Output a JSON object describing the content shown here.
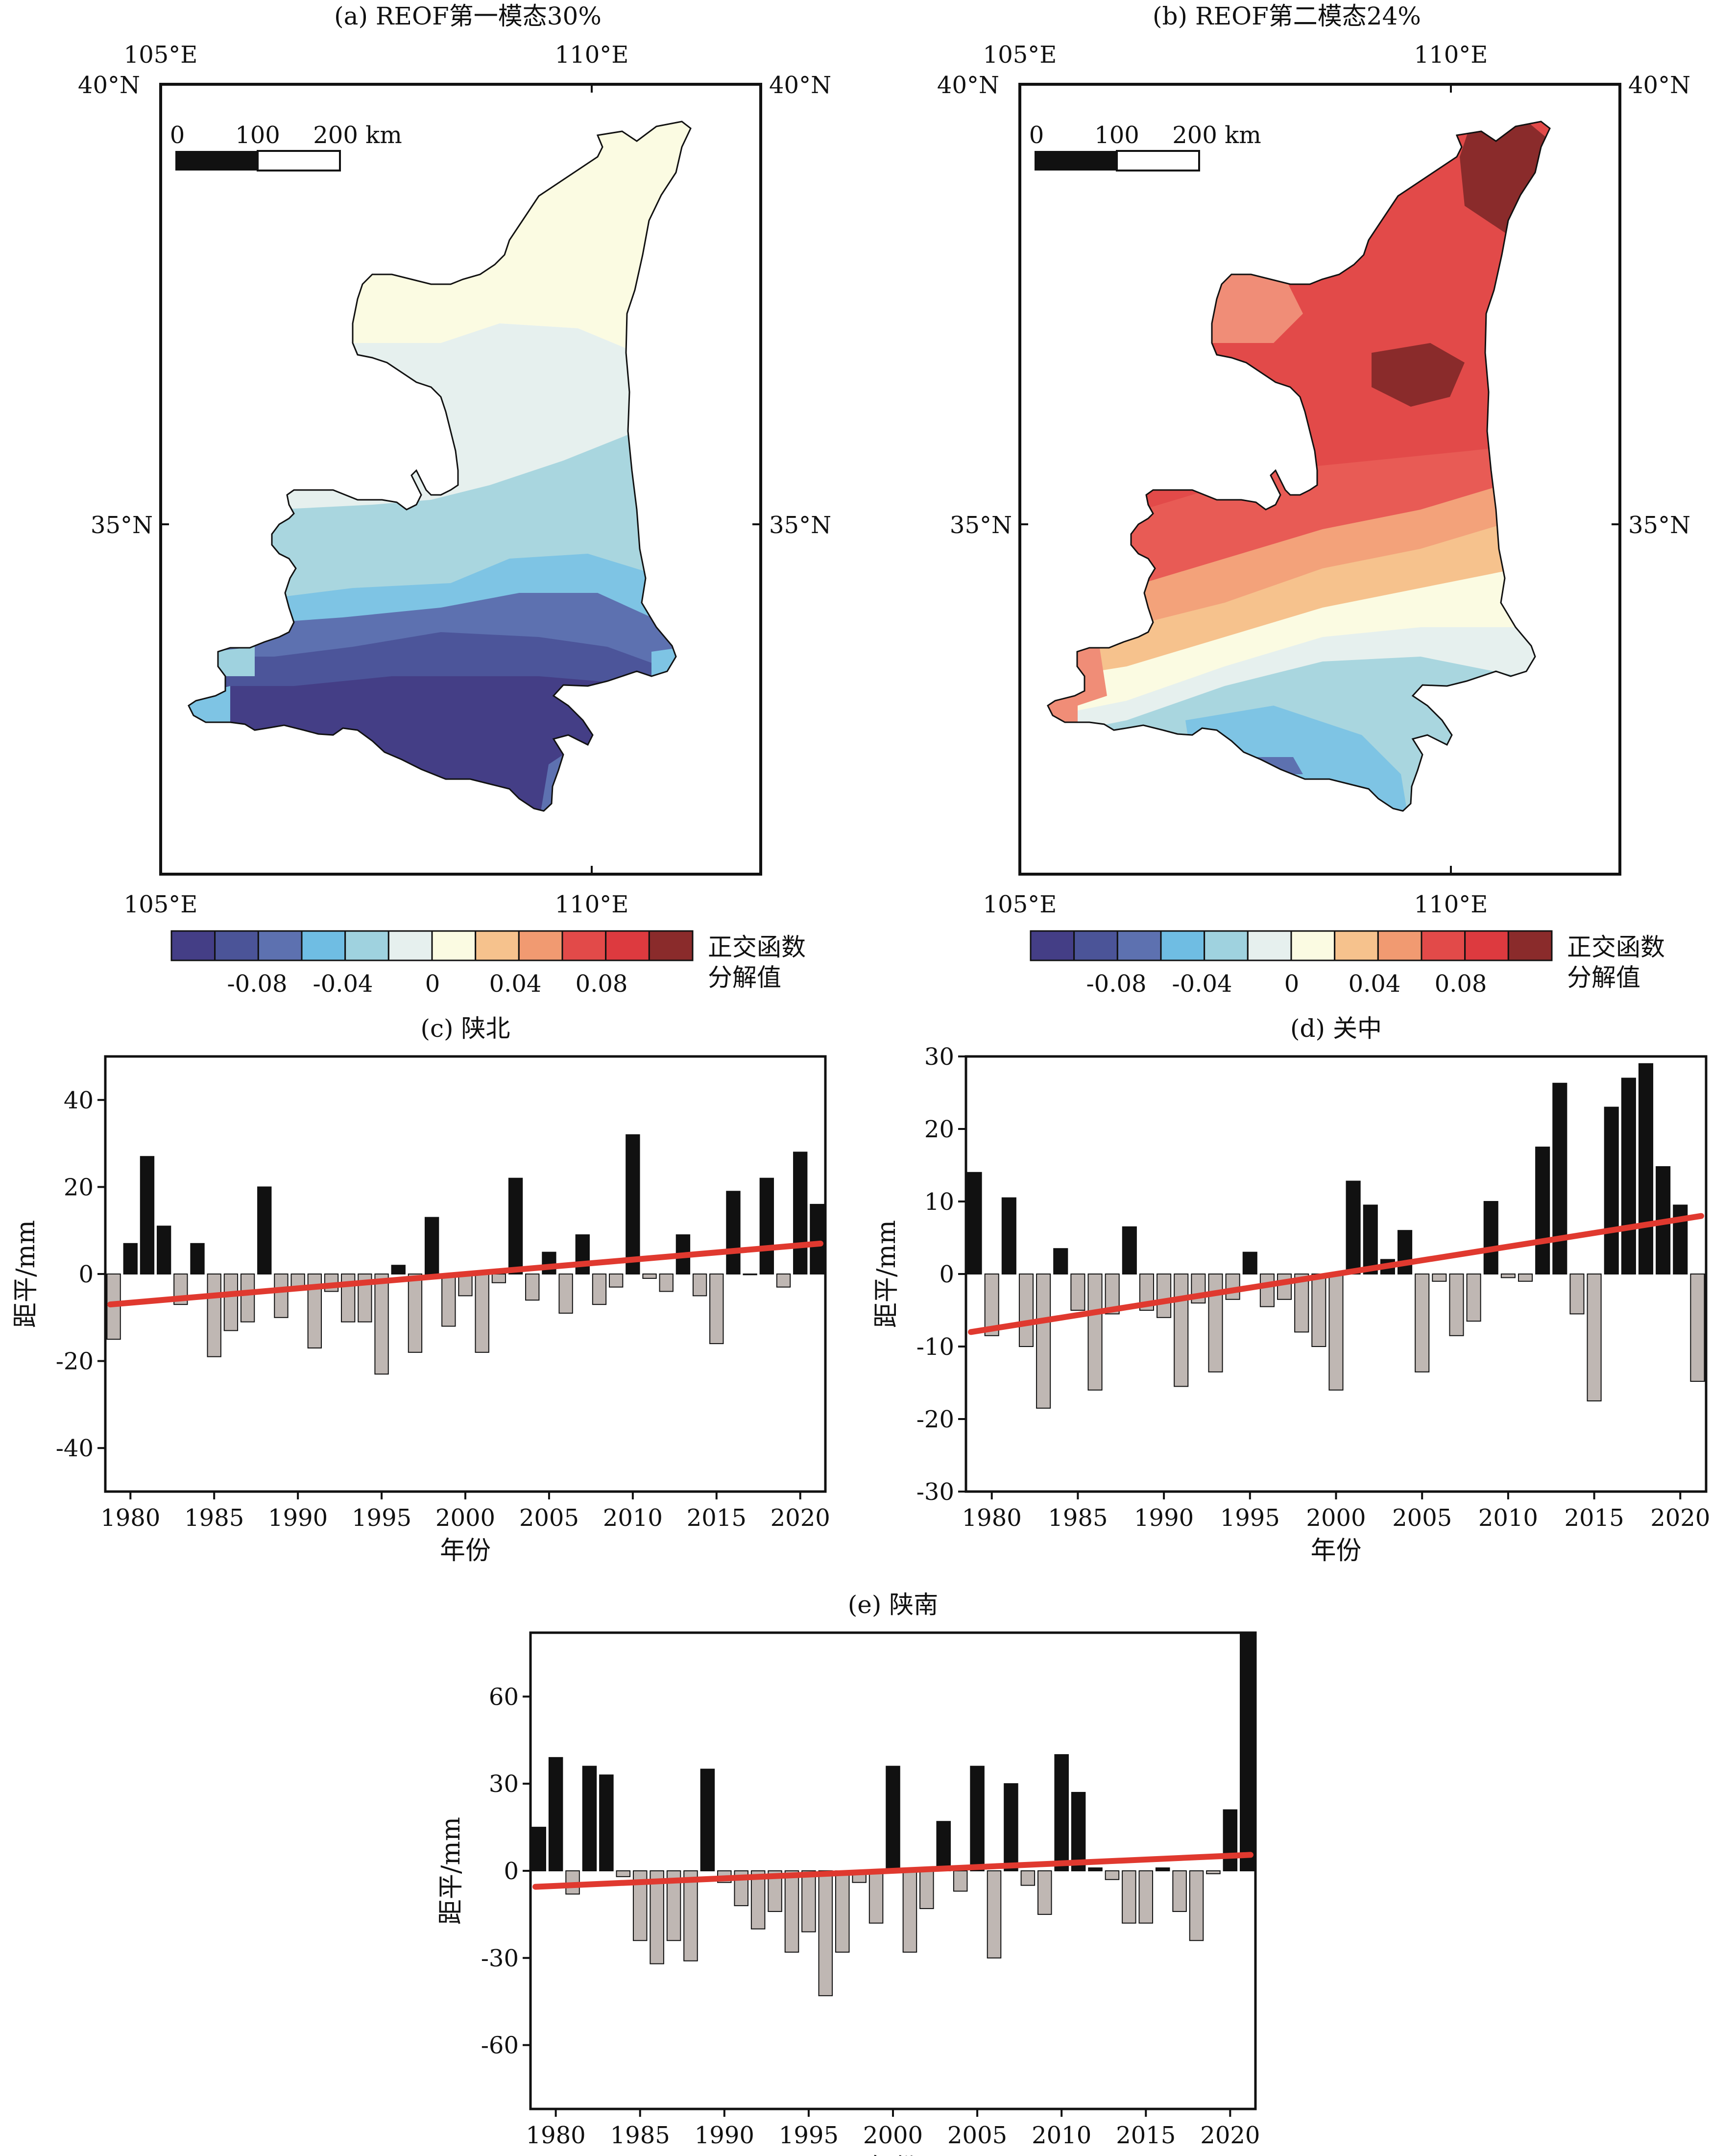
{
  "colors": {
    "neg_bar": "#bfb7b3",
    "pos_bar": "#111111",
    "trend": "#e0392f",
    "map_bg": "#ffffff",
    "colorbar": [
      "#443e86",
      "#4b5498",
      "#5d71b0",
      "#6fbde3",
      "#9fd2df",
      "#e6f0ee",
      "#fbfbe2",
      "#f6c28d",
      "#f19a71",
      "#e24a49",
      "#dd3a3f",
      "#8a2b2b"
    ]
  },
  "maps": [
    {
      "id": "a",
      "title": "(a) REOF第一模态30%",
      "lon_ticks": [
        "105°E",
        "110°E"
      ],
      "lat_ticks": [
        "40°N",
        "35°N"
      ],
      "scale_labels": [
        "0",
        "100",
        "200 km"
      ],
      "colorbar_ticks": [
        "-0.08",
        "-0.04",
        "0",
        "0.04",
        "0.08"
      ],
      "colorbar_label": [
        "正交函数",
        "分解值"
      ]
    },
    {
      "id": "b",
      "title": "(b) REOF第二模态24%",
      "lon_ticks": [
        "105°E",
        "110°E"
      ],
      "lat_ticks": [
        "40°N",
        "35°N"
      ],
      "scale_labels": [
        "0",
        "100",
        "200 km"
      ],
      "colorbar_ticks": [
        "-0.08",
        "-0.04",
        "0",
        "0.04",
        "0.08"
      ],
      "colorbar_label": [
        "正交函数",
        "分解值"
      ]
    }
  ],
  "chart_data": [
    {
      "id": "c",
      "type": "bar",
      "title": "(c) 陕北",
      "xlabel": "年份",
      "ylabel": "距平/mm",
      "x": [
        1979,
        1980,
        1981,
        1982,
        1983,
        1984,
        1985,
        1986,
        1987,
        1988,
        1989,
        1990,
        1991,
        1992,
        1993,
        1994,
        1995,
        1996,
        1997,
        1998,
        1999,
        2000,
        2001,
        2002,
        2003,
        2004,
        2005,
        2006,
        2007,
        2008,
        2009,
        2010,
        2011,
        2012,
        2013,
        2014,
        2015,
        2016,
        2017,
        2018,
        2019,
        2020,
        2021
      ],
      "values": [
        -15,
        7,
        27,
        11,
        -7,
        7,
        -19,
        -13,
        -11,
        20,
        -10,
        -3,
        -17,
        -4,
        -11,
        -11,
        -23,
        2,
        -18,
        13,
        -12,
        -5,
        -18,
        -2,
        22,
        -6,
        5,
        -9,
        9,
        -7,
        -3,
        32,
        -1,
        -4,
        9,
        -5,
        -16,
        19,
        0,
        22,
        -3,
        28,
        16
      ],
      "trend": [
        -7,
        7
      ],
      "xlim": [
        1978.5,
        2021.5
      ],
      "ylim": [
        -50,
        50
      ],
      "yticks": [
        -40,
        -20,
        0,
        20,
        40
      ],
      "xticks": [
        1980,
        1985,
        1990,
        1995,
        2000,
        2005,
        2010,
        2015,
        2020
      ]
    },
    {
      "id": "d",
      "type": "bar",
      "title": "(d) 关中",
      "xlabel": "年份",
      "ylabel": "距平/mm",
      "x": [
        1979,
        1980,
        1981,
        1982,
        1983,
        1984,
        1985,
        1986,
        1987,
        1988,
        1989,
        1990,
        1991,
        1992,
        1993,
        1994,
        1995,
        1996,
        1997,
        1998,
        1999,
        2000,
        2001,
        2002,
        2003,
        2004,
        2005,
        2006,
        2007,
        2008,
        2009,
        2010,
        2011,
        2012,
        2013,
        2014,
        2015,
        2016,
        2017,
        2018,
        2019,
        2020,
        2021
      ],
      "values": [
        14,
        -8.5,
        10.5,
        -10,
        -18.5,
        3.5,
        -5,
        -16,
        -5.5,
        6.5,
        -5,
        -6,
        -15.5,
        -4,
        -13.5,
        -3.5,
        3,
        -4.5,
        -3.5,
        -8,
        -10,
        -16,
        12.8,
        9.5,
        2,
        6,
        -13.5,
        -1,
        -8.5,
        -6.5,
        10,
        -0.5,
        -1,
        17.5,
        26.3,
        -5.5,
        -17.5,
        23,
        27,
        29,
        14.8,
        9.5,
        -14.8
      ],
      "trend": [
        -8,
        8
      ],
      "xlim": [
        1978.5,
        2021.5
      ],
      "ylim": [
        -30,
        30
      ],
      "yticks": [
        -30,
        -20,
        -10,
        0,
        10,
        20,
        30
      ],
      "xticks": [
        1980,
        1985,
        1990,
        1995,
        2000,
        2005,
        2010,
        2015,
        2020
      ]
    },
    {
      "id": "e",
      "type": "bar",
      "title": "(e) 陕南",
      "xlabel": "年份",
      "ylabel": "距平/mm",
      "x": [
        1979,
        1980,
        1981,
        1982,
        1983,
        1984,
        1985,
        1986,
        1987,
        1988,
        1989,
        1990,
        1991,
        1992,
        1993,
        1994,
        1995,
        1996,
        1997,
        1998,
        1999,
        2000,
        2001,
        2002,
        2003,
        2004,
        2005,
        2006,
        2007,
        2008,
        2009,
        2010,
        2011,
        2012,
        2013,
        2014,
        2015,
        2016,
        2017,
        2018,
        2019,
        2020,
        2021
      ],
      "values": [
        15,
        39,
        -8,
        36,
        33,
        -2,
        -24,
        -32,
        -24,
        -31,
        35,
        -4,
        -12,
        -20,
        -14,
        -28,
        -21,
        -43,
        -28,
        -4,
        -18,
        36,
        -28,
        -13,
        17,
        -7,
        36,
        -30,
        30,
        -5,
        -15,
        40,
        27,
        1,
        -3,
        -18,
        -18,
        1,
        -14,
        -24,
        -1,
        21,
        82
      ],
      "trend": [
        -5.5,
        5.5
      ],
      "xlim": [
        1978.5,
        2021.5
      ],
      "ylim": [
        -82,
        82
      ],
      "yticks": [
        -60,
        -30,
        0,
        30,
        60
      ],
      "xticks": [
        1980,
        1985,
        1990,
        1995,
        2000,
        2005,
        2010,
        2015,
        2020
      ]
    }
  ]
}
